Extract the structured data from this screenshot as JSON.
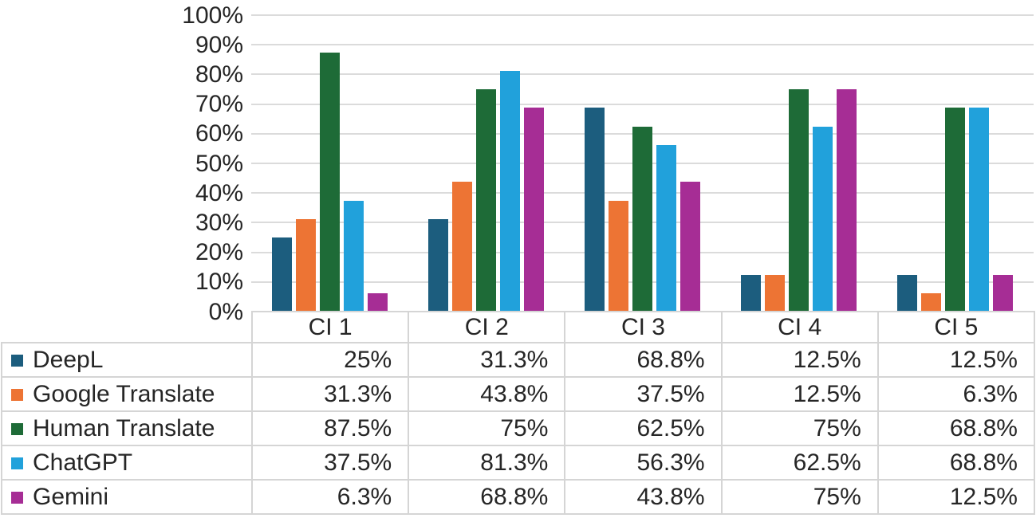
{
  "chart_data": {
    "type": "bar",
    "title": "",
    "categories": [
      "CI 1",
      "CI 2",
      "CI 3",
      "CI 4",
      "CI 5"
    ],
    "series": [
      {
        "name": "DeepL",
        "color": "#1C5D7E",
        "values": [
          25,
          31.3,
          68.8,
          12.5,
          12.5
        ],
        "labels": [
          "25%",
          "31.3%",
          "68.8%",
          "12.5%",
          "12.5%"
        ]
      },
      {
        "name": "Google Translate",
        "color": "#ED7434",
        "values": [
          31.3,
          43.8,
          37.5,
          12.5,
          6.3
        ],
        "labels": [
          "31.3%",
          "43.8%",
          "37.5%",
          "12.5%",
          "6.3%"
        ]
      },
      {
        "name": "Human Translate",
        "color": "#1E6B37",
        "values": [
          87.5,
          75,
          62.5,
          75,
          68.8
        ],
        "labels": [
          "87.5%",
          "75%",
          "62.5%",
          "75%",
          "68.8%"
        ]
      },
      {
        "name": "ChatGPT",
        "color": "#21A1DB",
        "values": [
          37.5,
          81.3,
          56.3,
          62.5,
          68.8
        ],
        "labels": [
          "37.5%",
          "81.3%",
          "56.3%",
          "62.5%",
          "68.8%"
        ]
      },
      {
        "name": "Gemini",
        "color": "#A62D95",
        "values": [
          6.3,
          68.8,
          43.8,
          75,
          12.5
        ],
        "labels": [
          "6.3%",
          "68.8%",
          "43.8%",
          "75%",
          "12.5%"
        ]
      }
    ],
    "y_ticks": [
      "100%",
      "90%",
      "80%",
      "70%",
      "60%",
      "50%",
      "40%",
      "30%",
      "20%",
      "10%",
      "0%"
    ],
    "ylim": [
      0,
      100
    ],
    "grid": true,
    "legend_position": "table-rows-left",
    "xlabel": "",
    "ylabel": ""
  },
  "colors": {
    "gridline": "#DBDBDB",
    "table_border": "#D5D5D5",
    "text": "#262626",
    "background": "#FFFFFF"
  }
}
